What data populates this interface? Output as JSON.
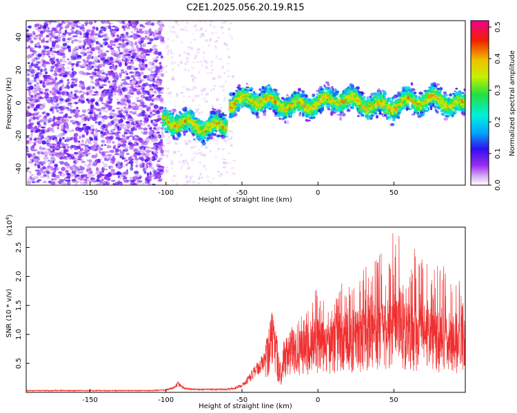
{
  "title": "C2E1.2025.056.20.19.R15",
  "colors": {
    "snr_line": "#f03030",
    "spec_ramp": [
      "#ffffff",
      "#d8b4f5",
      "#9a2cf0",
      "#3010f0",
      "#00a8f8",
      "#00f0e0",
      "#20e040",
      "#c8f000",
      "#f0c000",
      "#f02000",
      "#f00090"
    ]
  },
  "chart_data": [
    {
      "type": "heatmap",
      "name": "spectrogram",
      "xlabel": "Height of straight line (km)",
      "ylabel": "Frequency (Hz)",
      "xlim": [
        -192,
        97
      ],
      "ylim": [
        -50,
        50
      ],
      "xticks": [
        -150,
        -100,
        -50,
        0,
        50
      ],
      "yticks": [
        -40,
        -20,
        0,
        20,
        40
      ],
      "grid": false,
      "regions": [
        {
          "x_range": [
            -192,
            -102
          ],
          "freq_center": 0,
          "freq_halfwidth": 50,
          "level": "low-moderate",
          "pattern": "broadband speckle"
        },
        {
          "x_range": [
            -102,
            -60
          ],
          "freq_center": -13,
          "freq_halfwidth": 10,
          "level": "moderate-high"
        },
        {
          "x_range": [
            -58,
            97
          ],
          "freq_center": 0,
          "freq_halfwidth": 10,
          "level": "moderate-high"
        }
      ],
      "colorbar": {
        "label": "Normalized spectral amplitude",
        "range": [
          0.0,
          0.52
        ],
        "ticks": [
          0.0,
          0.1,
          0.2,
          0.3,
          0.4,
          0.5
        ],
        "tick_labels": [
          "0.0",
          "0.1",
          "0.2",
          "0.3",
          "0.4",
          "0.5"
        ]
      }
    },
    {
      "type": "line",
      "name": "snr",
      "xlabel": "Height of straight line (km)",
      "ylabel": "SNR (10 * v/v)",
      "multiplier_label": "(x10",
      "multiplier_exp": "4",
      "multiplier_close": ")",
      "xlim": [
        -192,
        97
      ],
      "ylim": [
        0,
        2.85
      ],
      "xticks": [
        -150,
        -100,
        -50,
        0,
        50
      ],
      "yticks": [
        0.5,
        1.0,
        1.5,
        2.0,
        2.5
      ],
      "ytick_labels": [
        "0.5",
        "1.0",
        "1.5",
        "2.0",
        "2.5"
      ],
      "grid": false,
      "x": [
        -192,
        -150,
        -110,
        -100,
        -95,
        -92,
        -88,
        -80,
        -70,
        -60,
        -55,
        -50,
        -45,
        -40,
        -35,
        -32,
        -30,
        -28,
        -26,
        -24,
        -22,
        -20,
        -15,
        -10,
        -5,
        0,
        5,
        10,
        15,
        20,
        25,
        30,
        35,
        40,
        45,
        50,
        55,
        60,
        65,
        70,
        75,
        80,
        85,
        90,
        97
      ],
      "y": [
        0.03,
        0.03,
        0.03,
        0.04,
        0.08,
        0.15,
        0.07,
        0.05,
        0.05,
        0.05,
        0.07,
        0.12,
        0.25,
        0.4,
        0.55,
        0.8,
        1.2,
        0.7,
        0.45,
        0.3,
        0.6,
        0.7,
        0.75,
        0.8,
        0.85,
        0.9,
        0.85,
        0.9,
        1.0,
        0.95,
        1.0,
        1.0,
        1.1,
        1.1,
        1.15,
        1.1,
        1.1,
        1.05,
        1.0,
        1.05,
        1.0,
        0.95,
        0.95,
        0.9,
        0.85
      ],
      "peak_envelope_x": [
        -35,
        -30,
        -25,
        -20,
        -15,
        -10,
        -5,
        0,
        5,
        10,
        15,
        20,
        25,
        30,
        35,
        40,
        45,
        50,
        55,
        60,
        65,
        70,
        75,
        80,
        85,
        90,
        97
      ],
      "peak_envelope_y": [
        0.9,
        1.4,
        0.7,
        1.1,
        1.3,
        1.5,
        1.6,
        1.9,
        1.8,
        1.7,
        1.9,
        2.0,
        2.1,
        2.2,
        2.3,
        2.5,
        2.6,
        2.8,
        2.7,
        2.4,
        2.6,
        2.3,
        2.3,
        2.4,
        2.0,
        2.0,
        1.9
      ]
    }
  ]
}
